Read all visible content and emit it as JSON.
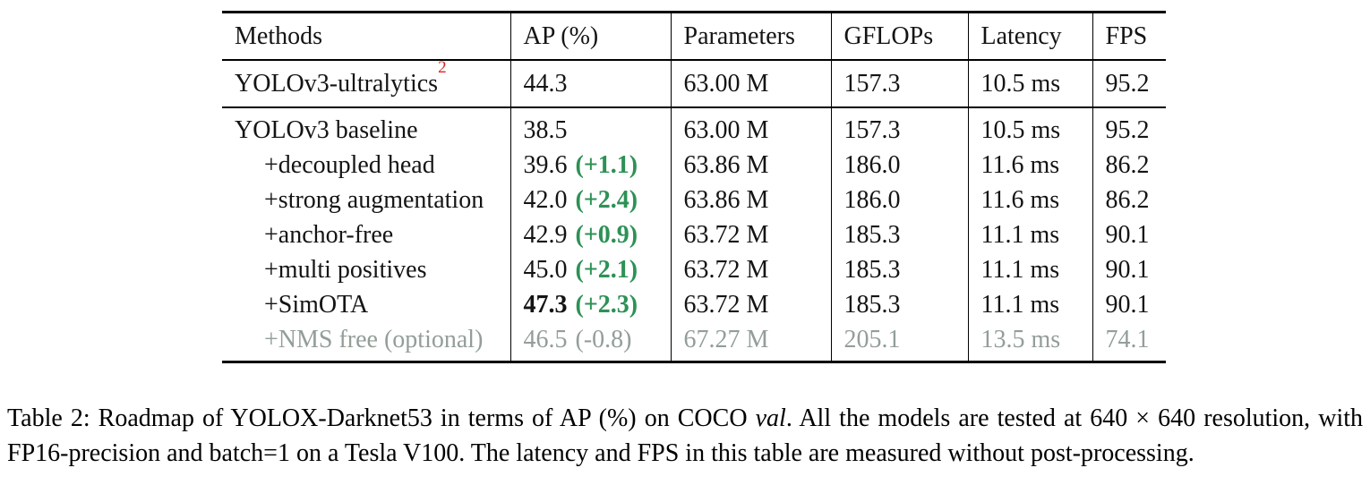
{
  "table": {
    "headers": [
      "Methods",
      "AP (%)",
      "Parameters",
      "GFLOPs",
      "Latency",
      "FPS"
    ],
    "reference_row": {
      "method": "YOLOv3-ultralytics",
      "footnote_marker": "2",
      "ap": "44.3",
      "ap_delta": "",
      "parameters": "63.00 M",
      "gflops": "157.3",
      "latency": "10.5 ms",
      "fps": "95.2"
    },
    "rows": [
      {
        "method": "YOLOv3 baseline",
        "ap": "38.5",
        "ap_delta": "",
        "parameters": "63.00 M",
        "gflops": "157.3",
        "latency": "10.5 ms",
        "fps": "95.2"
      },
      {
        "method": "+decoupled head",
        "ap": "39.6",
        "ap_delta": "(+1.1)",
        "parameters": "63.86 M",
        "gflops": "186.0",
        "latency": "11.6 ms",
        "fps": "86.2"
      },
      {
        "method": "+strong augmentation",
        "ap": "42.0",
        "ap_delta": "(+2.4)",
        "parameters": "63.86 M",
        "gflops": "186.0",
        "latency": "11.6 ms",
        "fps": "86.2"
      },
      {
        "method": "+anchor-free",
        "ap": "42.9",
        "ap_delta": "(+0.9)",
        "parameters": "63.72 M",
        "gflops": "185.3",
        "latency": "11.1 ms",
        "fps": "90.1"
      },
      {
        "method": "+multi positives",
        "ap": "45.0",
        "ap_delta": "(+2.1)",
        "parameters": "63.72 M",
        "gflops": "185.3",
        "latency": "11.1 ms",
        "fps": "90.1"
      },
      {
        "method": "+SimOTA",
        "ap": "47.3",
        "ap_delta": "(+2.3)",
        "parameters": "63.72 M",
        "gflops": "185.3",
        "latency": "11.1 ms",
        "fps": "90.1"
      },
      {
        "method": "+NMS free (optional)",
        "ap": "46.5",
        "ap_delta": "(-0.8)",
        "parameters": "67.27 M",
        "gflops": "205.1",
        "latency": "13.5 ms",
        "fps": "74.1"
      }
    ]
  },
  "caption": {
    "part1": "Table 2: Roadmap of YOLOX-Darknet53 in terms of AP (%) on COCO ",
    "italic": "val",
    "part2": ". All the models are tested at 640 × 640 resolution, with FP16-precision and batch=1 on a Tesla V100. The latency and FPS in this table are measured without post-processing."
  },
  "colors": {
    "delta_green": "#2d9155",
    "footnote_red": "#e02418",
    "muted_gray": "#939e97"
  }
}
